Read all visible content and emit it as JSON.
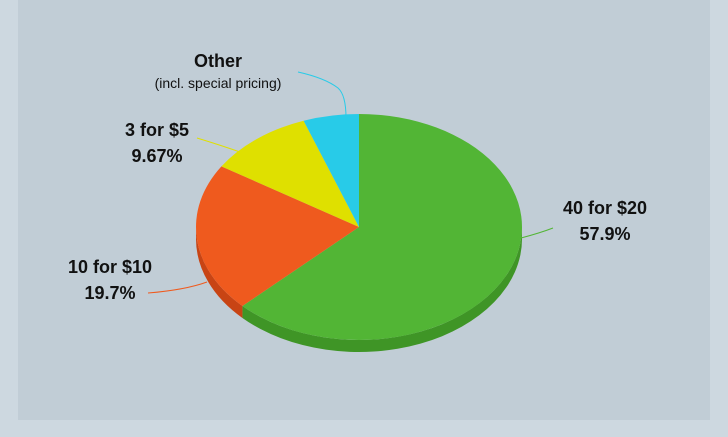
{
  "chart_data": {
    "type": "pie",
    "style": "3d",
    "title": "",
    "slices": [
      {
        "label": "40 for $20",
        "value": 57.9,
        "value_label": "57.9%",
        "color": "#52b535",
        "side_color": "#3f9526"
      },
      {
        "label": "10 for $10",
        "value": 19.7,
        "value_label": "19.7%",
        "color": "#ef5a1e",
        "side_color": "#c84414"
      },
      {
        "label": "3 for $5",
        "value": 9.67,
        "value_label": "9.67%",
        "color": "#dfe000",
        "side_color": "#b6b600"
      },
      {
        "label": "Other",
        "sublabel": "(incl. special pricing)",
        "value": 5.1,
        "value_label": "",
        "color": "#28cbe8",
        "side_color": "#1aa3bb"
      }
    ],
    "leader_line_colors": {
      "40 for $20": "#52b535",
      "10 for $10": "#ef5a1e",
      "3 for $5": "#dfe000",
      "Other": "#28cbe8"
    },
    "background_color": "#c1cdd6",
    "border_color": "#cdd8e0"
  }
}
